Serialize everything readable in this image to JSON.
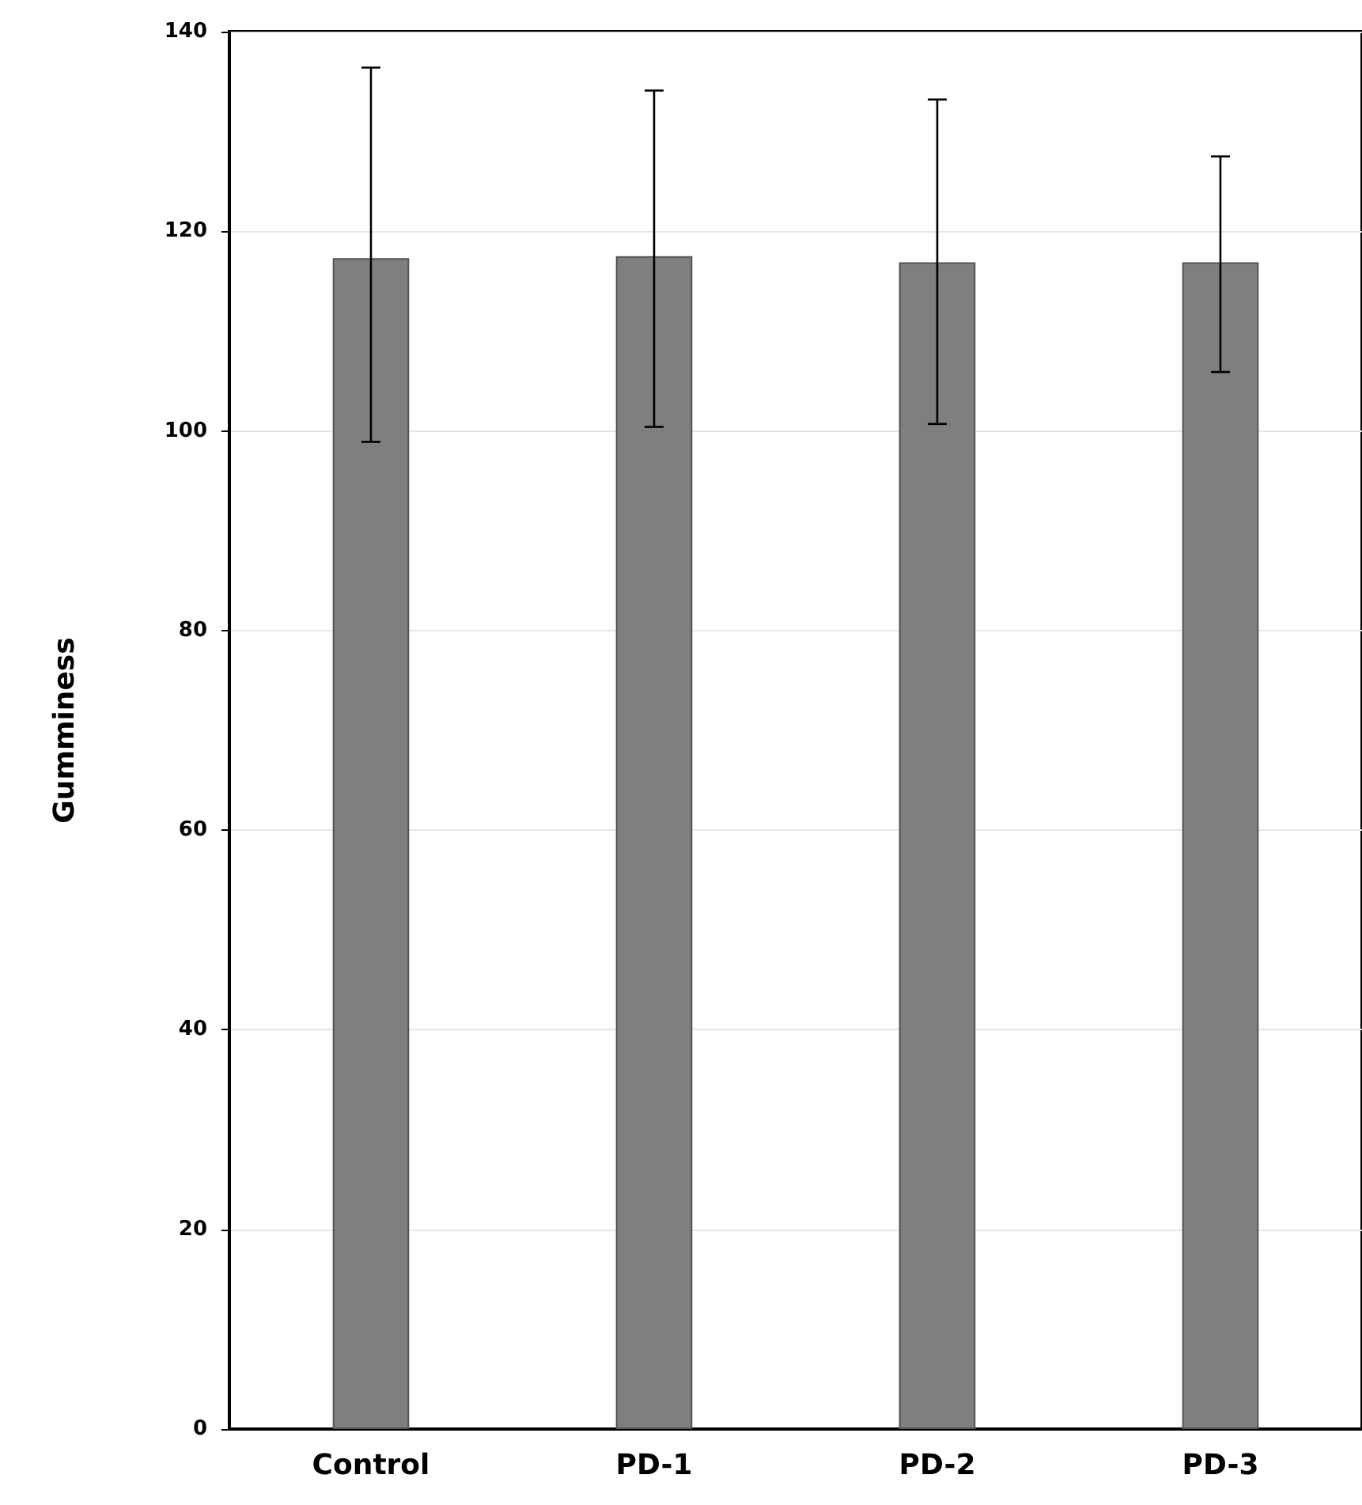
{
  "chart_data": {
    "type": "bar",
    "ylabel": "Gumminess",
    "categories": [
      "Control",
      "PD-1",
      "PD-2",
      "PD-3"
    ],
    "values": [
      117.3,
      117.5,
      116.9,
      116.9
    ],
    "errors": [
      [
        98.9,
        136.4
      ],
      [
        100.4,
        134.1
      ],
      [
        100.7,
        133.2
      ],
      [
        105.9,
        127.5
      ]
    ],
    "color": "#7f7f7f",
    "ylim": [
      0,
      140
    ],
    "yticks": [
      0,
      20,
      40,
      60,
      80,
      100,
      120,
      140
    ],
    "grid": "y"
  }
}
